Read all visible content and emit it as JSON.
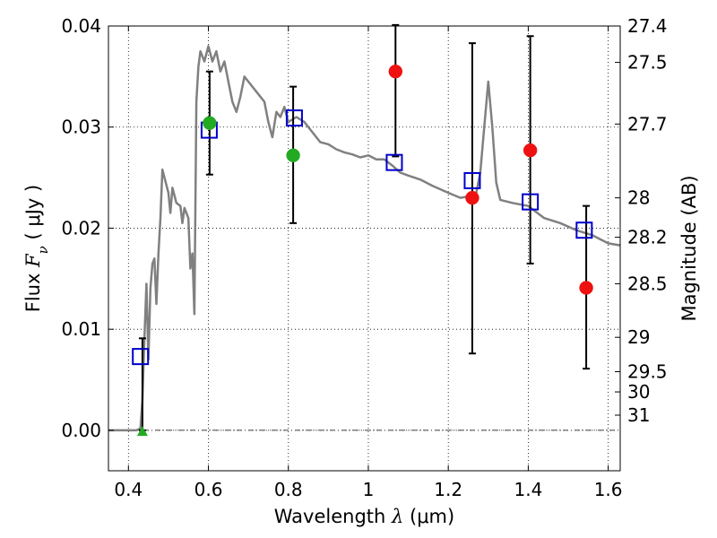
{
  "chart_data": {
    "type": "scatter",
    "xlabel": {
      "prefix": "Wavelength ",
      "symbol": "λ",
      "unit": " (μm)"
    },
    "ylabel": {
      "prefix": "Flux ",
      "symbol": "F",
      "subscript": "ν",
      "unit": " ( μJy )"
    },
    "y2label": "Magnitude (AB)",
    "xlim": [
      0.35,
      1.63
    ],
    "ylim": [
      -0.004,
      0.04
    ],
    "xticks": [
      0.4,
      0.6,
      0.8,
      1.0,
      1.2,
      1.4,
      1.6
    ],
    "xtick_labels": [
      "0.4",
      "0.6",
      "0.8",
      "1",
      "1.2",
      "1.4",
      "1.6"
    ],
    "yticks": [
      0.0,
      0.01,
      0.02,
      0.03,
      0.04
    ],
    "ytick_labels": [
      "0.00",
      "0.01",
      "0.02",
      "0.03",
      "0.04"
    ],
    "y2ticks": [
      {
        "label": "27.4",
        "flux": 0.04
      },
      {
        "label": "27.5",
        "flux": 0.0364
      },
      {
        "label": "27.7",
        "flux": 0.0303
      },
      {
        "label": "28",
        "flux": 0.023
      },
      {
        "label": "28.2",
        "flux": 0.0191
      },
      {
        "label": "28.5",
        "flux": 0.0145
      },
      {
        "label": "29",
        "flux": 0.0092
      },
      {
        "label": "29.5",
        "flux": 0.0058
      },
      {
        "label": "30",
        "flux": 0.0038
      },
      {
        "label": "31",
        "flux": 0.0015
      }
    ],
    "grid": true,
    "colors": {
      "sed": "#808080",
      "model": "#0000cc",
      "green": "#22aa22",
      "red": "#ee1111",
      "errorbar": "#000000",
      "zeroline": "#000000"
    },
    "sed_curve": [
      [
        0.35,
        0.0
      ],
      [
        0.42,
        0.0
      ],
      [
        0.43,
        0.0002
      ],
      [
        0.435,
        0.003
      ],
      [
        0.44,
        0.009
      ],
      [
        0.445,
        0.0145
      ],
      [
        0.45,
        0.007
      ],
      [
        0.455,
        0.014
      ],
      [
        0.46,
        0.0165
      ],
      [
        0.465,
        0.017
      ],
      [
        0.47,
        0.0125
      ],
      [
        0.475,
        0.0175
      ],
      [
        0.48,
        0.021
      ],
      [
        0.485,
        0.0258
      ],
      [
        0.49,
        0.025
      ],
      [
        0.5,
        0.0235
      ],
      [
        0.505,
        0.0215
      ],
      [
        0.51,
        0.024
      ],
      [
        0.52,
        0.0225
      ],
      [
        0.53,
        0.0222
      ],
      [
        0.535,
        0.0205
      ],
      [
        0.54,
        0.022
      ],
      [
        0.55,
        0.021
      ],
      [
        0.555,
        0.016
      ],
      [
        0.56,
        0.0175
      ],
      [
        0.565,
        0.0115
      ],
      [
        0.57,
        0.0325
      ],
      [
        0.575,
        0.036
      ],
      [
        0.58,
        0.0375
      ],
      [
        0.59,
        0.0365
      ],
      [
        0.6,
        0.038
      ],
      [
        0.61,
        0.0365
      ],
      [
        0.62,
        0.0375
      ],
      [
        0.63,
        0.0355
      ],
      [
        0.64,
        0.0365
      ],
      [
        0.65,
        0.0345
      ],
      [
        0.66,
        0.0325
      ],
      [
        0.67,
        0.0315
      ],
      [
        0.68,
        0.033
      ],
      [
        0.69,
        0.035
      ],
      [
        0.7,
        0.0345
      ],
      [
        0.72,
        0.0335
      ],
      [
        0.74,
        0.0325
      ],
      [
        0.75,
        0.0305
      ],
      [
        0.76,
        0.029
      ],
      [
        0.77,
        0.0315
      ],
      [
        0.78,
        0.031
      ],
      [
        0.79,
        0.032
      ],
      [
        0.8,
        0.0305
      ],
      [
        0.82,
        0.031
      ],
      [
        0.84,
        0.0305
      ],
      [
        0.86,
        0.0295
      ],
      [
        0.88,
        0.0285
      ],
      [
        0.9,
        0.0283
      ],
      [
        0.92,
        0.0278
      ],
      [
        0.94,
        0.0275
      ],
      [
        0.96,
        0.0273
      ],
      [
        0.98,
        0.027
      ],
      [
        1.0,
        0.0272
      ],
      [
        1.02,
        0.0268
      ],
      [
        1.04,
        0.0268
      ],
      [
        1.06,
        0.0262
      ],
      [
        1.08,
        0.0255
      ],
      [
        1.1,
        0.0252
      ],
      [
        1.13,
        0.0248
      ],
      [
        1.16,
        0.0242
      ],
      [
        1.2,
        0.0235
      ],
      [
        1.23,
        0.023
      ],
      [
        1.26,
        0.0232
      ],
      [
        1.27,
        0.0235
      ],
      [
        1.28,
        0.0255
      ],
      [
        1.29,
        0.03
      ],
      [
        1.3,
        0.0345
      ],
      [
        1.31,
        0.03
      ],
      [
        1.32,
        0.0245
      ],
      [
        1.33,
        0.0228
      ],
      [
        1.36,
        0.0225
      ],
      [
        1.4,
        0.0222
      ],
      [
        1.44,
        0.021
      ],
      [
        1.48,
        0.0205
      ],
      [
        1.52,
        0.0198
      ],
      [
        1.56,
        0.0193
      ],
      [
        1.6,
        0.0185
      ],
      [
        1.63,
        0.0183
      ]
    ],
    "series": [
      {
        "marker": "open-square",
        "color": "#0000cc",
        "points": [
          [
            0.43,
            0.0073
          ],
          [
            0.602,
            0.0297
          ],
          [
            0.815,
            0.0309
          ],
          [
            1.065,
            0.0265
          ],
          [
            1.26,
            0.0247
          ],
          [
            1.405,
            0.0226
          ],
          [
            1.54,
            0.0198
          ]
        ]
      },
      {
        "marker": "filled-circle",
        "color": "#22aa22",
        "points": [
          [
            0.603,
            0.0304
          ],
          [
            0.812,
            0.0272
          ]
        ]
      },
      {
        "marker": "filled-triangle",
        "color": "#22aa22",
        "points": [
          [
            0.435,
            -0.0002
          ]
        ]
      },
      {
        "marker": "filled-circle",
        "color": "#ee1111",
        "points": [
          [
            1.068,
            0.0355
          ],
          [
            1.26,
            0.023
          ],
          [
            1.405,
            0.0277
          ],
          [
            1.545,
            0.0141
          ]
        ]
      }
    ],
    "errorbars": [
      {
        "x": 0.435,
        "low": 0.0,
        "high": 0.0091
      },
      {
        "x": 0.603,
        "low": 0.0253,
        "high": 0.0355
      },
      {
        "x": 0.812,
        "low": 0.0205,
        "high": 0.034
      },
      {
        "x": 1.068,
        "low": 0.0271,
        "high": 0.0401
      },
      {
        "x": 1.26,
        "low": 0.0076,
        "high": 0.0383
      },
      {
        "x": 1.405,
        "low": 0.0165,
        "high": 0.039
      },
      {
        "x": 1.545,
        "low": 0.0061,
        "high": 0.0222
      }
    ],
    "zero_line": 0.0
  }
}
